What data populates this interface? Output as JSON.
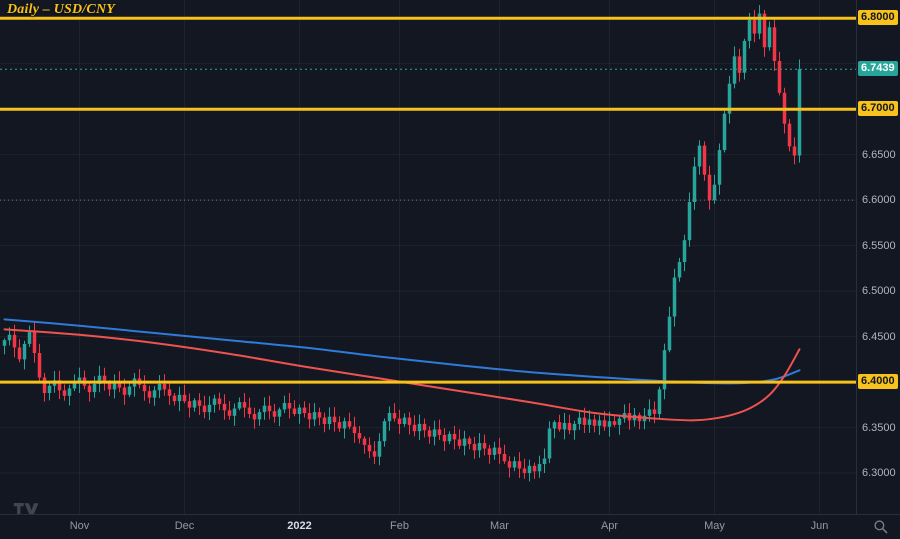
{
  "window": {
    "title": "Daily – USD/CNY"
  },
  "colors": {
    "background": "#131722",
    "grid": "rgba(255,255,255,0.05)",
    "up": "#26a69a",
    "down": "#f23645",
    "ma_slow_blue": "#2e7bd8",
    "ma_fast_red": "#ef5350",
    "level_yellow": "#f6c21b",
    "dotted_gray": "#9598a1",
    "last_teal": "#26a69a",
    "axis_text": "#b2b5be",
    "axis_border": "#2a2e39",
    "badge_dark_text": "#131722",
    "badge_light_text": "#ffffff",
    "watermark_gray": "#5b5f6b"
  },
  "price_axis": {
    "ticks": [
      {
        "price": 6.65,
        "label": "6.6500"
      },
      {
        "price": 6.6,
        "label": "6.6000"
      },
      {
        "price": 6.55,
        "label": "6.5500"
      },
      {
        "price": 6.5,
        "label": "6.5000"
      },
      {
        "price": 6.45,
        "label": "6.4500"
      },
      {
        "price": 6.35,
        "label": "6.3500"
      },
      {
        "price": 6.3,
        "label": "6.3000"
      }
    ],
    "badges": [
      {
        "price": 6.8,
        "label": "6.8000",
        "kind": "level"
      },
      {
        "price": 6.7439,
        "label": "6.7439",
        "kind": "last"
      },
      {
        "price": 6.7,
        "label": "6.7000",
        "kind": "level"
      },
      {
        "price": 6.4,
        "label": "6.4000",
        "kind": "level"
      }
    ]
  },
  "chart_data": {
    "type": "candlestick",
    "symbol": "USD/CNY",
    "timeframe": "Daily",
    "title": "Daily – USD/CNY",
    "y_range": [
      6.255,
      6.82
    ],
    "grid_price_min": 6.3,
    "grid_price_max": 6.8,
    "grid_price_step": 0.05,
    "months": [
      {
        "label": "Nov",
        "index": 15
      },
      {
        "label": "Dec",
        "index": 36
      },
      {
        "label": "2022",
        "index": 59
      },
      {
        "label": "Feb",
        "index": 79
      },
      {
        "label": "Mar",
        "index": 99
      },
      {
        "label": "Apr",
        "index": 121
      },
      {
        "label": "May",
        "index": 142
      },
      {
        "label": "Jun",
        "index": 163
      }
    ],
    "levels": [
      {
        "price": 6.8,
        "style": "solid",
        "color": "yellow"
      },
      {
        "price": 6.7,
        "style": "solid",
        "color": "yellow"
      },
      {
        "price": 6.4,
        "style": "solid",
        "color": "yellow"
      },
      {
        "price": 6.6,
        "style": "dotted",
        "color": "gray"
      }
    ],
    "last_price": {
      "price": 6.7439,
      "label": "6.7439",
      "style": "dotted",
      "color": "teal"
    },
    "first_open": 6.44,
    "closes": [
      6.446,
      6.452,
      6.438,
      6.425,
      6.442,
      6.455,
      6.432,
      6.405,
      6.388,
      6.396,
      6.402,
      6.391,
      6.385,
      6.393,
      6.399,
      6.405,
      6.396,
      6.389,
      6.398,
      6.407,
      6.399,
      6.392,
      6.401,
      6.394,
      6.386,
      6.395,
      6.404,
      6.397,
      6.39,
      6.383,
      6.391,
      6.398,
      6.392,
      6.385,
      6.379,
      6.386,
      6.379,
      6.372,
      6.38,
      6.374,
      6.367,
      6.375,
      6.382,
      6.376,
      6.369,
      6.363,
      6.371,
      6.378,
      6.372,
      6.365,
      6.359,
      6.367,
      6.374,
      6.368,
      6.362,
      6.37,
      6.377,
      6.371,
      6.365,
      6.372,
      6.366,
      6.359,
      6.367,
      6.361,
      6.354,
      6.362,
      6.356,
      6.349,
      6.357,
      6.351,
      6.344,
      6.338,
      6.331,
      6.324,
      6.318,
      6.335,
      6.357,
      6.366,
      6.36,
      6.354,
      6.361,
      6.353,
      6.346,
      6.354,
      6.347,
      6.34,
      6.348,
      6.342,
      6.335,
      6.343,
      6.337,
      6.33,
      6.338,
      6.332,
      6.325,
      6.333,
      6.327,
      6.32,
      6.328,
      6.321,
      6.313,
      6.306,
      6.313,
      6.305,
      6.3,
      6.308,
      6.302,
      6.31,
      6.316,
      6.349,
      6.356,
      6.348,
      6.355,
      6.347,
      6.354,
      6.361,
      6.353,
      6.359,
      6.352,
      6.358,
      6.351,
      6.357,
      6.353,
      6.36,
      6.366,
      6.358,
      6.364,
      6.357,
      6.363,
      6.37,
      6.365,
      6.392,
      6.435,
      6.472,
      6.515,
      6.532,
      6.556,
      6.598,
      6.637,
      6.66,
      6.628,
      6.6,
      6.617,
      6.655,
      6.695,
      6.728,
      6.758,
      6.74,
      6.775,
      6.798,
      6.783,
      6.805,
      6.768,
      6.79,
      6.753,
      6.718,
      6.684,
      6.659,
      6.649,
      6.7439
    ],
    "ma_blue_points": [
      [
        0,
        6.469
      ],
      [
        15,
        6.462
      ],
      [
        30,
        6.454
      ],
      [
        45,
        6.446
      ],
      [
        60,
        6.438
      ],
      [
        75,
        6.428
      ],
      [
        90,
        6.419
      ],
      [
        105,
        6.411
      ],
      [
        120,
        6.405
      ],
      [
        132,
        6.401
      ],
      [
        140,
        6.399
      ],
      [
        148,
        6.399
      ],
      [
        154,
        6.403
      ],
      [
        159,
        6.413
      ]
    ],
    "ma_red_points": [
      [
        0,
        6.458
      ],
      [
        15,
        6.452
      ],
      [
        30,
        6.443
      ],
      [
        45,
        6.431
      ],
      [
        60,
        6.417
      ],
      [
        75,
        6.404
      ],
      [
        90,
        6.391
      ],
      [
        105,
        6.378
      ],
      [
        118,
        6.366
      ],
      [
        130,
        6.36
      ],
      [
        138,
        6.358
      ],
      [
        144,
        6.362
      ],
      [
        149,
        6.371
      ],
      [
        153,
        6.386
      ],
      [
        156,
        6.407
      ],
      [
        159,
        6.436
      ]
    ]
  },
  "time_axis": {
    "zoom_icon": "magnifier"
  }
}
